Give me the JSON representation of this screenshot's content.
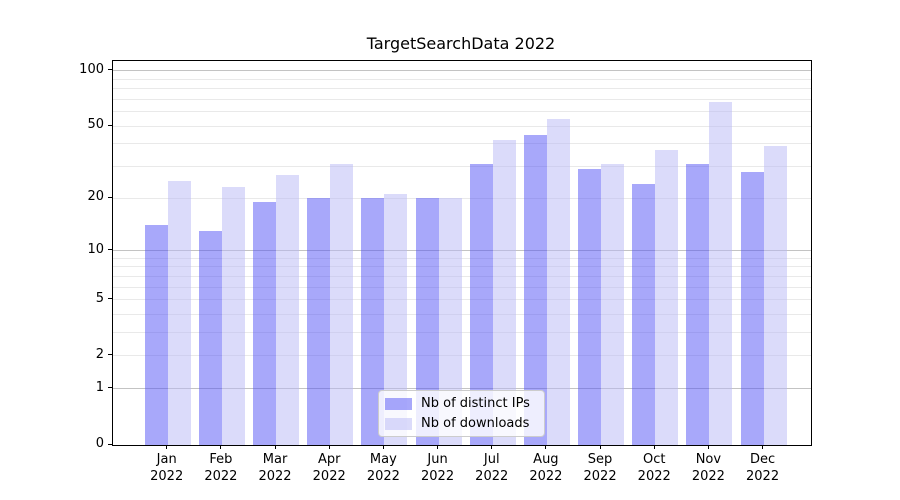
{
  "chart_data": {
    "type": "bar",
    "title": "TargetSearchData 2022",
    "categories": [
      "Jan",
      "Feb",
      "Mar",
      "Apr",
      "May",
      "Jun",
      "Jul",
      "Aug",
      "Sep",
      "Oct",
      "Nov",
      "Dec"
    ],
    "category_year": "2022",
    "series": [
      {
        "name": "Nb of distinct IPs",
        "color": "rgba(82,82,245,0.5)",
        "values": [
          14,
          13,
          19,
          20,
          20,
          20,
          31,
          45,
          29,
          24,
          31,
          28
        ]
      },
      {
        "name": "Nb of downloads",
        "color": "rgba(184,184,246,0.5)",
        "values": [
          25,
          23,
          27,
          31,
          21,
          20,
          42,
          55,
          31,
          37,
          68,
          39
        ]
      }
    ],
    "y_axis": {
      "scale": "log1p",
      "tick_values": [
        0,
        1,
        2,
        5,
        10,
        20,
        50,
        100
      ],
      "major_gridlines": [
        1,
        10,
        100
      ],
      "minor_gridlines": [
        2,
        3,
        4,
        5,
        6,
        7,
        8,
        9,
        20,
        30,
        40,
        50,
        60,
        70,
        80,
        90
      ],
      "min": 0,
      "max": 113
    },
    "legend_position": "lower center",
    "grid": true
  },
  "colors": {
    "bar_distinct_ips": "rgba(82,82,245,0.5)",
    "bar_downloads": "rgba(184,184,246,0.5)",
    "major_grid": "#c3c3c3",
    "minor_grid": "#e9e9e9",
    "axis": "#000000",
    "legend_border": "#cccccc"
  }
}
